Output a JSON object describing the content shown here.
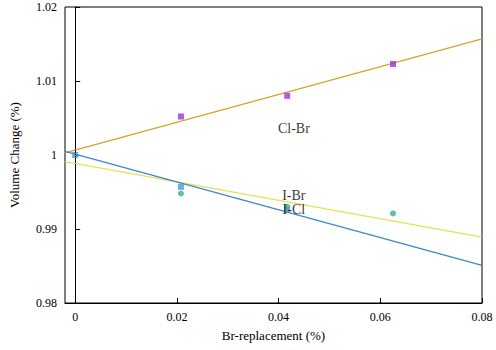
{
  "chart_data": {
    "type": "scatter",
    "x_label": "Br-replacement (%)",
    "y_label": "Volume Change (%)",
    "xlim": [
      -0.002,
      0.08
    ],
    "xticks": [
      0,
      0.02,
      0.04,
      0.06,
      0.08
    ],
    "ylim": [
      0.98,
      1.02
    ],
    "yticks": [
      0.98,
      0.99,
      1,
      1.01,
      1.02
    ],
    "grid": false,
    "vlines": [
      0
    ],
    "series": [
      {
        "name": "Cl-Br",
        "color": "#a32fd6",
        "marker": "square",
        "x": [
          0.0208,
          0.0417,
          0.0625
        ],
        "values": [
          1.0052,
          1.008,
          1.0123
        ],
        "fit": {
          "color": "#d6a42c",
          "x": [
            -0.002,
            0.08
          ],
          "values": [
            1.0003,
            1.0157
          ]
        },
        "label_at": [
          0.043,
          1.0036
        ]
      },
      {
        "name": "I-Br",
        "color": "#3caf8c",
        "marker": "circle",
        "x": [
          0.0208,
          0.0417,
          0.0625
        ],
        "values": [
          0.9948,
          0.993,
          0.9921
        ],
        "fit": {
          "color": "#e2e25a",
          "x": [
            -0.002,
            0.08
          ],
          "values": [
            0.9991,
            0.9889
          ]
        },
        "label_at": [
          0.043,
          0.9945
        ]
      },
      {
        "name": "I-Cl",
        "color": "#4a9cc8",
        "marker": "square",
        "x": [
          0,
          0.0208,
          0.0417
        ],
        "values": [
          1,
          0.9957,
          0.9926
        ],
        "fit": {
          "color": "#3f88c5",
          "x": [
            -0.002,
            0.08
          ],
          "values": [
            1.0005,
            0.9851
          ]
        },
        "label_at": [
          0.043,
          0.9926
        ]
      }
    ]
  }
}
